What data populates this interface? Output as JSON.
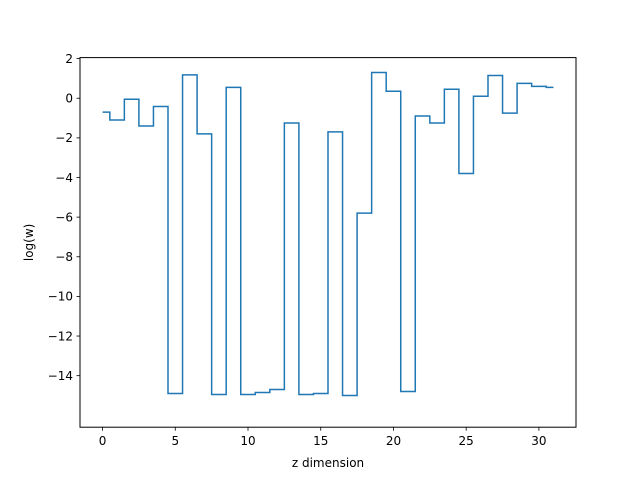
{
  "chart_data": {
    "type": "line",
    "step": "post",
    "xlabel": "z dimension",
    "ylabel": "log(w)",
    "xlim": [
      -1.55,
      32.55
    ],
    "ylim": [
      -16.6,
      2.05
    ],
    "xticks": [
      0,
      5,
      10,
      15,
      20,
      25,
      30
    ],
    "yticks": [
      2,
      0,
      -2,
      -4,
      -6,
      -8,
      -10,
      -12,
      -14
    ],
    "xtick_labels": [
      "0",
      "5",
      "10",
      "15",
      "20",
      "25",
      "30"
    ],
    "ytick_labels": [
      "2",
      "0",
      "−2",
      "−4",
      "−6",
      "−8",
      "−10",
      "−12",
      "−14"
    ],
    "grid": false,
    "color": "#1f77b4",
    "series": [
      {
        "x": [
          0,
          0.5,
          1.5,
          2.5,
          3.5,
          4.5,
          5.5,
          6.5,
          7.5,
          8.5,
          9.5,
          10.5,
          11.5,
          12.5,
          13.5,
          14.5,
          15.5,
          16.5,
          17.5,
          18.5,
          19.5,
          20.5,
          21.5,
          22.5,
          23.5,
          24.5,
          25.5,
          26.5,
          27.5,
          28.5,
          29.5,
          30.5,
          31
        ],
        "values": [
          -0.7,
          -1.1,
          -0.05,
          -1.4,
          -0.42,
          -14.9,
          1.18,
          -1.8,
          -14.95,
          0.55,
          -14.95,
          -14.85,
          -14.7,
          -1.25,
          -14.95,
          -14.9,
          -1.7,
          -15.0,
          -5.8,
          1.3,
          0.35,
          -14.8,
          -0.9,
          -1.25,
          0.45,
          -3.8,
          0.1,
          1.15,
          -0.75,
          0.75,
          0.6,
          0.55,
          0.55
        ]
      }
    ]
  }
}
